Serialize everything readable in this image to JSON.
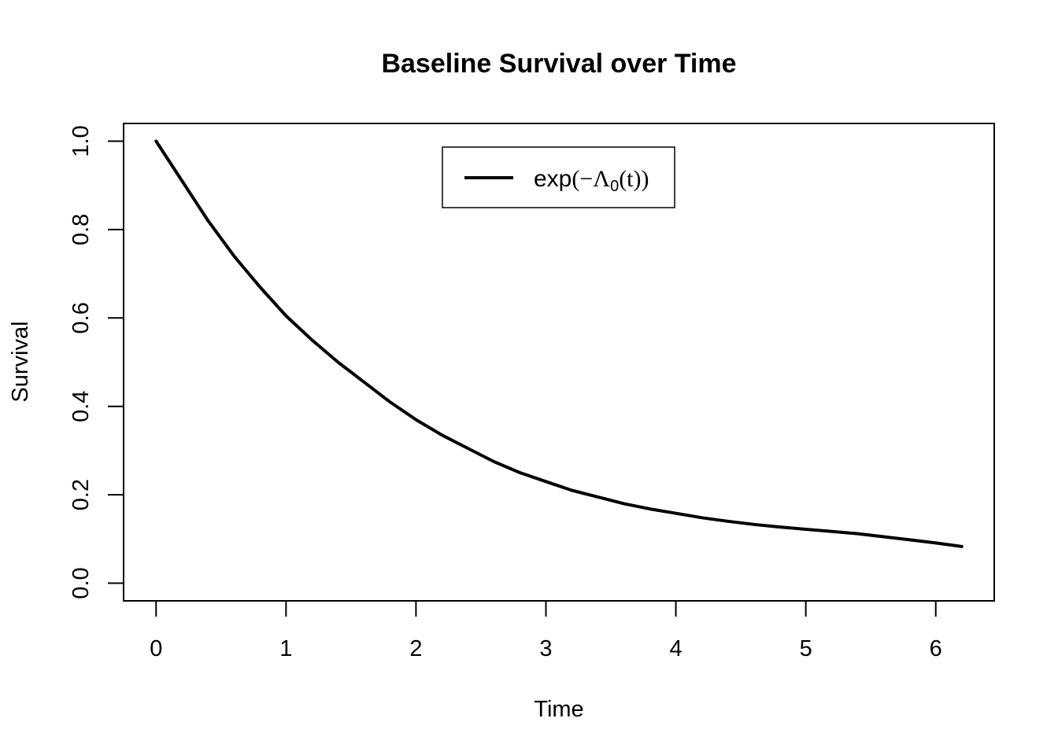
{
  "chart_data": {
    "type": "line",
    "title": "Baseline Survival over Time",
    "xlabel": "Time",
    "ylabel": "Survival",
    "xlim": [
      -0.25,
      6.45
    ],
    "ylim": [
      -0.04,
      1.04
    ],
    "x_ticks": [
      0,
      1,
      2,
      3,
      4,
      5,
      6
    ],
    "x_tick_labels": [
      "0",
      "1",
      "2",
      "3",
      "4",
      "5",
      "6"
    ],
    "y_ticks": [
      0.0,
      0.2,
      0.4,
      0.6,
      0.8,
      1.0
    ],
    "y_tick_labels": [
      "0.0",
      "0.2",
      "0.4",
      "0.6",
      "0.8",
      "1.0"
    ],
    "grid": false,
    "legend": {
      "position": "top-center",
      "entries": [
        {
          "label_prefix": "exp",
          "label_open": "(−",
          "label_symbol": "Λ",
          "label_subscript": "0",
          "label_suffix": "(t))"
        }
      ]
    },
    "series": [
      {
        "color": "#000000",
        "x": [
          0.0,
          0.2,
          0.4,
          0.6,
          0.8,
          1.0,
          1.2,
          1.4,
          1.6,
          1.8,
          2.0,
          2.2,
          2.4,
          2.6,
          2.8,
          3.0,
          3.2,
          3.4,
          3.6,
          3.8,
          4.0,
          4.2,
          4.4,
          4.6,
          4.8,
          5.0,
          5.2,
          5.4,
          5.6,
          5.8,
          6.0,
          6.2
        ],
        "y": [
          1.0,
          0.91,
          0.82,
          0.74,
          0.67,
          0.605,
          0.55,
          0.5,
          0.455,
          0.41,
          0.37,
          0.335,
          0.305,
          0.275,
          0.25,
          0.23,
          0.21,
          0.195,
          0.18,
          0.168,
          0.158,
          0.148,
          0.14,
          0.133,
          0.127,
          0.122,
          0.117,
          0.112,
          0.105,
          0.098,
          0.091,
          0.083
        ]
      }
    ]
  }
}
